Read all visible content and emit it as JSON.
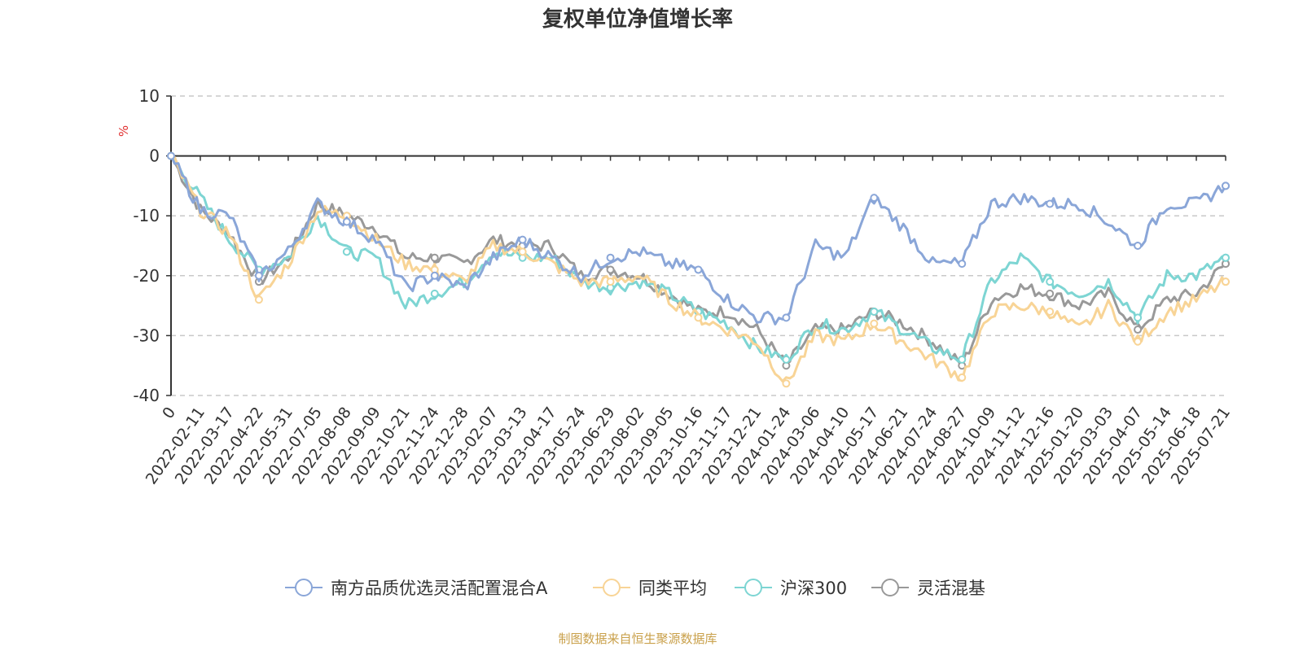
{
  "title": "复权单位净值增长率",
  "source": "制图数据来自恒生聚源数据库",
  "chart_data": {
    "type": "line",
    "title": "复权单位净值增长率",
    "ylabel": "%",
    "ylim": [
      -40,
      10
    ],
    "yticks": [
      "10",
      "0",
      "-10",
      "-20",
      "-30",
      "-40"
    ],
    "grid": true,
    "legend_position": "bottom",
    "x_categories": [
      "0",
      "2022-02-11",
      "2022-03-17",
      "2022-04-22",
      "2022-05-31",
      "2022-07-05",
      "2022-08-08",
      "2022-09-09",
      "2022-10-21",
      "2022-11-24",
      "2022-12-28",
      "2023-02-07",
      "2023-03-13",
      "2023-04-17",
      "2023-05-24",
      "2023-06-29",
      "2023-08-02",
      "2023-09-05",
      "2023-10-16",
      "2023-11-17",
      "2023-12-21",
      "2024-01-24",
      "2024-03-06",
      "2024-04-10",
      "2024-05-17",
      "2024-06-21",
      "2024-07-24",
      "2024-08-27",
      "2024-10-09",
      "2024-11-12",
      "2024-12-16",
      "2025-01-20",
      "2025-03-03",
      "2025-04-07",
      "2025-05-14",
      "2025-06-18",
      "2025-07-21"
    ],
    "series": [
      {
        "name": "南方品质优选灵活配置混合A",
        "color": "#8aa6d8",
        "values": [
          0,
          -9,
          -10,
          -20,
          -16,
          -8,
          -11,
          -14,
          -22,
          -20,
          -22,
          -17,
          -14,
          -17,
          -20,
          -17,
          -16,
          -18,
          -19,
          -24,
          -27,
          -27,
          -15,
          -17,
          -7,
          -12,
          -18,
          -18,
          -8,
          -7,
          -8,
          -8,
          -11,
          -15,
          -8,
          -8,
          -5
        ]
      },
      {
        "name": "同类平均",
        "color": "#f8d496",
        "values": [
          0,
          -9,
          -13,
          -24,
          -18,
          -9,
          -10,
          -14,
          -18,
          -19,
          -21,
          -15,
          -16,
          -18,
          -21,
          -21,
          -20,
          -24,
          -27,
          -29,
          -31,
          -38,
          -30,
          -31,
          -28,
          -31,
          -34,
          -37,
          -26,
          -25,
          -26,
          -29,
          -25,
          -31,
          -26,
          -24,
          -21
        ]
      },
      {
        "name": "沪深300",
        "color": "#7dd5d3",
        "values": [
          0,
          -7,
          -14,
          -19,
          -17,
          -10,
          -16,
          -17,
          -25,
          -23,
          -21,
          -16,
          -17,
          -17,
          -21,
          -22,
          -21,
          -23,
          -26,
          -28,
          -32,
          -34,
          -28,
          -29,
          -26,
          -29,
          -32,
          -34,
          -21,
          -17,
          -21,
          -23,
          -21,
          -27,
          -20,
          -20,
          -17
        ]
      },
      {
        "name": "灵活混基",
        "color": "#999999",
        "values": [
          0,
          -9,
          -13,
          -21,
          -17,
          -8,
          -10,
          -12,
          -17,
          -17,
          -18,
          -14,
          -15,
          -15,
          -20,
          -19,
          -20,
          -23,
          -26,
          -26,
          -29,
          -35,
          -29,
          -29,
          -26,
          -28,
          -31,
          -35,
          -24,
          -22,
          -23,
          -25,
          -23,
          -29,
          -24,
          -23,
          -18
        ]
      }
    ]
  }
}
